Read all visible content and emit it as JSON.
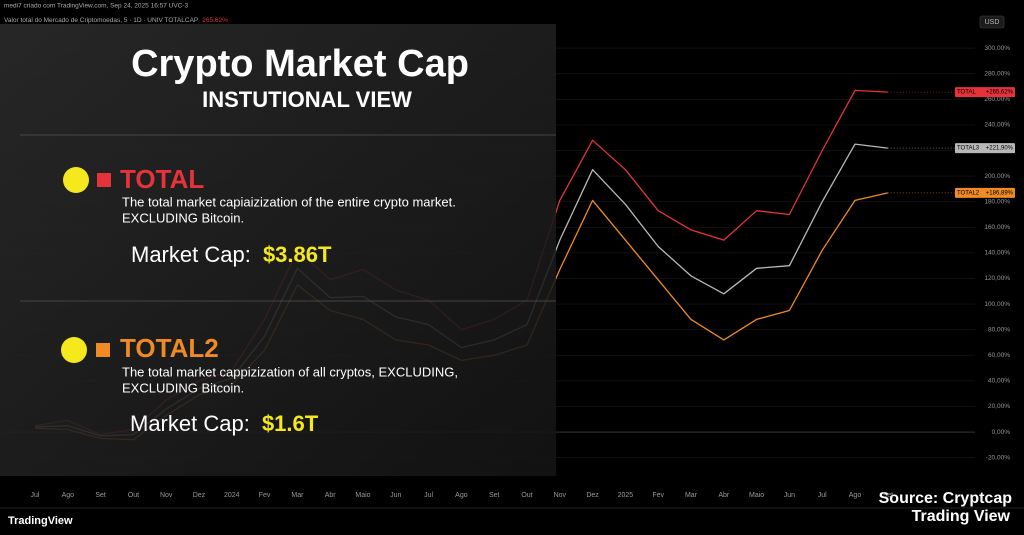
{
  "header": {
    "line1": "medi7 criado com TradingView.com, Sep 24, 2025 16:57 UVC-3",
    "line2": "Valor total do Mercado de Criptomoedas, 5 · 1D · UNIV TOTALCAP",
    "change": "265.62%",
    "currency": "USD"
  },
  "overlay": {
    "title": "Crypto Market Cap",
    "subtitle": "INSTUTIONAL VIEW",
    "item1_name": "TOTAL",
    "item1_desc1": "The total market capiaizization of the entire crypto market.",
    "item1_desc2": "EXCLUDING Bitcoin.",
    "item1_cap_label": "Market Cap: ",
    "item1_cap_value": "$3.86T",
    "item2_name": "TOTAL2",
    "item2_desc1": "The total market cappizization of all cryptos, EXCLUDING,",
    "item2_desc2": "EXCLUDING Bitcoin.",
    "item2_cap_label": "Market Cap: ",
    "item2_cap_value": "$1.6T",
    "source1": "Source: Cryptcap",
    "source2": "Trading View",
    "logo": "TradingView"
  },
  "chart_data": {
    "type": "line",
    "categories": [
      "Jul",
      "Ago",
      "Set",
      "Out",
      "Nov",
      "Dez",
      "2024",
      "Fev",
      "Mar",
      "Abr",
      "Maio",
      "Jun",
      "Jul",
      "Ago",
      "Set",
      "Out",
      "Nov",
      "Dez",
      "2025",
      "Fev",
      "Mar",
      "Abr",
      "Maio",
      "Jun",
      "Jul",
      "Ago",
      "Set"
    ],
    "series": [
      {
        "name": "TOTAL",
        "color": "#e5323b",
        "values": [
          5,
          9,
          -2,
          2,
          25,
          40,
          48,
          88,
          142,
          119,
          127,
          111,
          103,
          80,
          88,
          103,
          181,
          228,
          205,
          173,
          158,
          150,
          173,
          170,
          220,
          267,
          265.62
        ],
        "value_labels": [
          null,
          null,
          null,
          null,
          null,
          null,
          null,
          null,
          null,
          null,
          null,
          null,
          null,
          null,
          null,
          null,
          null,
          null,
          null,
          null,
          null,
          null,
          null,
          null,
          null,
          null,
          "+265,62%"
        ]
      },
      {
        "name": "TOTAL3",
        "color": "#b8b8b8",
        "values": [
          4,
          5,
          -3,
          -2,
          18,
          34,
          42,
          75,
          128,
          105,
          106,
          90,
          84,
          66,
          72,
          84,
          150,
          205,
          178,
          145,
          122,
          108,
          128,
          130,
          180,
          225,
          221.9
        ],
        "value_labels": [
          null,
          null,
          null,
          null,
          null,
          null,
          null,
          null,
          null,
          null,
          null,
          null,
          null,
          null,
          null,
          null,
          null,
          null,
          null,
          null,
          null,
          null,
          null,
          null,
          null,
          null,
          "+221,90%"
        ]
      },
      {
        "name": "TOTAL2",
        "color": "#f08a24",
        "values": [
          3,
          2,
          -5,
          -6,
          13,
          29,
          37,
          64,
          115,
          95,
          88,
          72,
          68,
          56,
          60,
          68,
          127,
          181,
          150,
          119,
          88,
          72,
          88,
          95,
          142,
          181,
          186.89
        ],
        "value_labels": [
          null,
          null,
          null,
          null,
          null,
          null,
          null,
          null,
          null,
          null,
          null,
          null,
          null,
          null,
          null,
          null,
          null,
          null,
          null,
          null,
          null,
          null,
          null,
          null,
          null,
          null,
          "+186,89%"
        ]
      }
    ],
    "ylim": [
      -32,
      322
    ],
    "yticks": [
      {
        "value": -20,
        "label": "-20,00%"
      },
      {
        "value": 0,
        "label": "0,00%"
      },
      {
        "value": 20,
        "label": "20,00%"
      },
      {
        "value": 40,
        "label": "40,00%"
      },
      {
        "value": 60,
        "label": "60,00%"
      },
      {
        "value": 80,
        "label": "80,00%"
      },
      {
        "value": 100,
        "label": "100,00%"
      },
      {
        "value": 120,
        "label": "120,00%"
      },
      {
        "value": 140,
        "label": "140,00%"
      },
      {
        "value": 160,
        "label": "160,00%"
      },
      {
        "value": 180,
        "label": "180,00%"
      },
      {
        "value": 200,
        "label": "200,00%"
      },
      {
        "value": 220,
        "label": "220,00%"
      },
      {
        "value": 240,
        "label": "240,00%"
      },
      {
        "value": 260,
        "label": "260,00%"
      },
      {
        "value": 280,
        "label": "280,00%"
      },
      {
        "value": 300,
        "label": "300,00%"
      }
    ],
    "grid": true
  }
}
